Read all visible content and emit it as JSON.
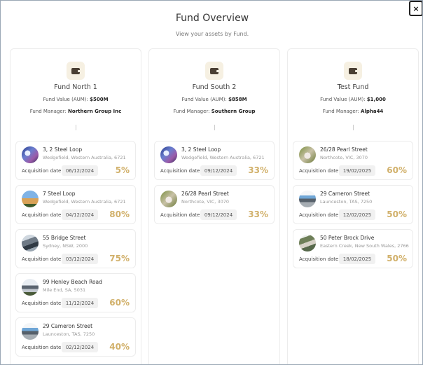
{
  "header": {
    "title": "Fund Overview",
    "subtitle": "View your assets by Fund.",
    "close_label": "×"
  },
  "labels": {
    "fund_value": "Fund Value (AUM):",
    "fund_manager": "Fund Manager:",
    "acquisition_date": "Acquisition date"
  },
  "colors": {
    "percent": "#d1b06a",
    "icon_bg": "#f6f0e2"
  },
  "funds": [
    {
      "name": "Fund North 1",
      "value": "$500M",
      "manager": "Northern Group Inc",
      "assets": [
        {
          "address": "3, 2 Steel Loop",
          "location": "Wedgefield, Western Australia, 6721",
          "date": "06/12/2024",
          "percent": "5%"
        },
        {
          "address": "7 Steel Loop",
          "location": "Wedgefield, Western Australia, 6721",
          "date": "04/12/2024",
          "percent": "80%"
        },
        {
          "address": "55 Bridge Street",
          "location": "Sydney, NSW, 2000",
          "date": "03/12/2024",
          "percent": "75%"
        },
        {
          "address": "99 Henley Beach Road",
          "location": "Mile End, SA, 5031",
          "date": "11/12/2024",
          "percent": "60%"
        },
        {
          "address": "29 Cameron Street",
          "location": "Launceston, TAS, 7250",
          "date": "02/12/2024",
          "percent": "40%"
        }
      ]
    },
    {
      "name": "Fund South 2",
      "value": "$858M",
      "manager": "Southern Group",
      "assets": [
        {
          "address": "3, 2 Steel Loop",
          "location": "Wedgefield, Western Australia, 6721",
          "date": "09/12/2024",
          "percent": "33%"
        },
        {
          "address": "26/28 Pearl Street",
          "location": "Northcote, VIC, 3070",
          "date": "09/12/2024",
          "percent": "33%"
        }
      ]
    },
    {
      "name": "Test Fund",
      "value": "$1,000",
      "manager": "Alpha44",
      "assets": [
        {
          "address": "26/28 Pearl Street",
          "location": "Northcote, VIC, 3070",
          "date": "19/02/2025",
          "percent": "60%"
        },
        {
          "address": "29 Cameron Street",
          "location": "Launceston, TAS, 7250",
          "date": "12/02/2025",
          "percent": "50%"
        },
        {
          "address": "50 Peter Brock Drive",
          "location": "Eastern Creek, New South Wales, 2766",
          "date": "18/02/2025",
          "percent": "50%"
        }
      ]
    }
  ]
}
